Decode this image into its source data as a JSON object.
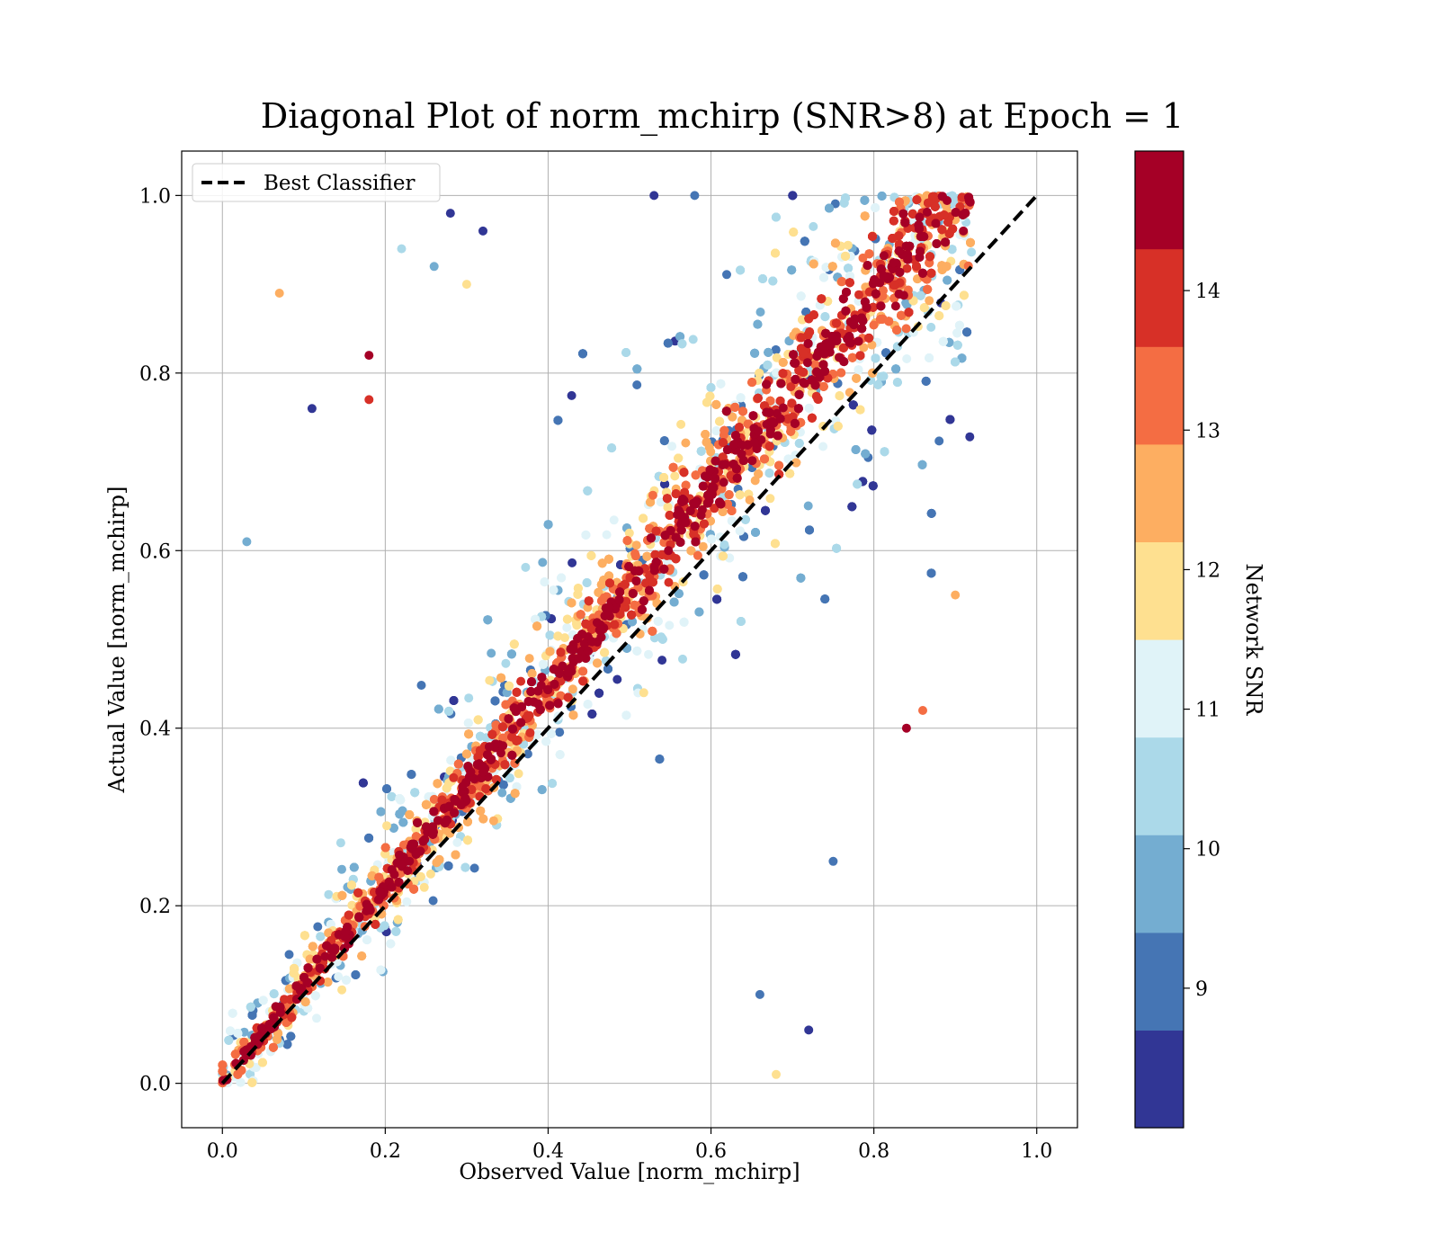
{
  "chart_data": {
    "type": "scatter",
    "title": "Diagonal Plot of norm_mchirp (SNR>8) at Epoch = 1",
    "xlabel": "Observed Value [norm_mchirp]",
    "ylabel": "Actual Value [norm_mchirp]",
    "xlim": [
      -0.05,
      1.05
    ],
    "ylim": [
      -0.05,
      1.05
    ],
    "x_ticks": [
      "0.0",
      "0.2",
      "0.4",
      "0.6",
      "0.8",
      "1.0"
    ],
    "y_ticks": [
      "0.0",
      "0.2",
      "0.4",
      "0.6",
      "0.8",
      "1.0"
    ],
    "x_tick_values": [
      0,
      0.2,
      0.4,
      0.6,
      0.8,
      1.0
    ],
    "y_tick_values": [
      0,
      0.2,
      0.4,
      0.6,
      0.8,
      1.0
    ],
    "grid": true,
    "legend": {
      "placement": "top-left",
      "entries": [
        {
          "label": "Best Classifier",
          "style": "dashed",
          "color": "#000000"
        }
      ]
    },
    "reference_line": {
      "name": "Best Classifier",
      "x": [
        0,
        1
      ],
      "y": [
        0,
        1
      ]
    },
    "colorbar": {
      "label": "Network SNR",
      "range": [
        8,
        15
      ],
      "tick_labels": [
        "9",
        "10",
        "11",
        "12",
        "13",
        "14"
      ],
      "tick_values": [
        9,
        10,
        11,
        12,
        13,
        14
      ],
      "colors": [
        "#313695",
        "#4575b4",
        "#74add1",
        "#abd9e9",
        "#e0f3f8",
        "#fee090",
        "#fdae61",
        "#f46d43",
        "#d73027",
        "#a50026"
      ]
    },
    "points": {
      "description_of_distribution": "dense scatter concentrated along the diagonal y=x; high SNR points tight to diagonal, low SNR points scattered further",
      "sample": [
        {
          "x": 0.07,
          "y": 0.89,
          "snr": 12.7
        },
        {
          "x": 0.03,
          "y": 0.61,
          "snr": 9.5
        },
        {
          "x": 0.11,
          "y": 0.76,
          "snr": 8.5
        },
        {
          "x": 0.18,
          "y": 0.82,
          "snr": 14.8
        },
        {
          "x": 0.18,
          "y": 0.77,
          "snr": 14.0
        },
        {
          "x": 0.28,
          "y": 0.98,
          "snr": 8.5
        },
        {
          "x": 0.22,
          "y": 0.94,
          "snr": 10.2
        },
        {
          "x": 0.26,
          "y": 0.92,
          "snr": 9.8
        },
        {
          "x": 0.3,
          "y": 0.9,
          "snr": 12.0
        },
        {
          "x": 0.32,
          "y": 0.96,
          "snr": 8.7
        },
        {
          "x": 0.75,
          "y": 0.25,
          "snr": 9.0
        },
        {
          "x": 0.72,
          "y": 0.06,
          "snr": 8.5
        },
        {
          "x": 0.66,
          "y": 0.1,
          "snr": 9.2
        },
        {
          "x": 0.68,
          "y": 0.01,
          "snr": 12.0
        },
        {
          "x": 0.84,
          "y": 0.4,
          "snr": 14.6
        },
        {
          "x": 0.86,
          "y": 0.42,
          "snr": 13.5
        },
        {
          "x": 0.9,
          "y": 0.55,
          "snr": 12.7
        },
        {
          "x": 0.91,
          "y": 0.96,
          "snr": 14.8
        },
        {
          "x": 0.53,
          "y": 1.0,
          "snr": 8.6
        },
        {
          "x": 0.58,
          "y": 1.0,
          "snr": 9.0
        }
      ]
    }
  }
}
